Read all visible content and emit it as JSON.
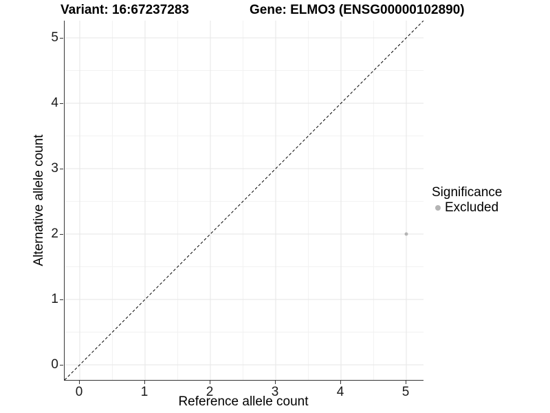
{
  "titles": {
    "variant": "Variant: 16:67237283",
    "gene": "Gene: ELMO3 (ENSG00000102890)"
  },
  "chart_data": {
    "type": "scatter",
    "title": "Variant: 16:67237283 / Gene: ELMO3 (ENSG00000102890)",
    "xlabel": "Reference allele count",
    "ylabel": "Alternative allele count",
    "xticks": [
      0,
      1,
      2,
      3,
      4,
      5
    ],
    "yticks": [
      0,
      1,
      2,
      3,
      4,
      5
    ],
    "xtick_labels": [
      "0",
      "1",
      "2",
      "3",
      "4",
      "5"
    ],
    "ytick_labels": [
      "0",
      "1",
      "2",
      "3",
      "4",
      "5"
    ],
    "xlim": [
      -0.232,
      5.263
    ],
    "ylim": [
      -0.232,
      5.263
    ],
    "grid": "major-and-minor",
    "points": [
      {
        "x": 5,
        "y": 2,
        "series": "Excluded"
      }
    ],
    "reference_line": {
      "slope": 1,
      "intercept": 0,
      "style": "dashed",
      "color": "#000000"
    },
    "legend": {
      "title": "Significance",
      "position": "right",
      "items": [
        {
          "label": "Excluded",
          "color": "#b4b4b4"
        }
      ]
    },
    "colors": {
      "point": "#b4b4b4",
      "grid_major": "#e6e6e6",
      "grid_minor": "#f2f2f2",
      "axis_line": "#333333",
      "text": "#000000"
    }
  }
}
